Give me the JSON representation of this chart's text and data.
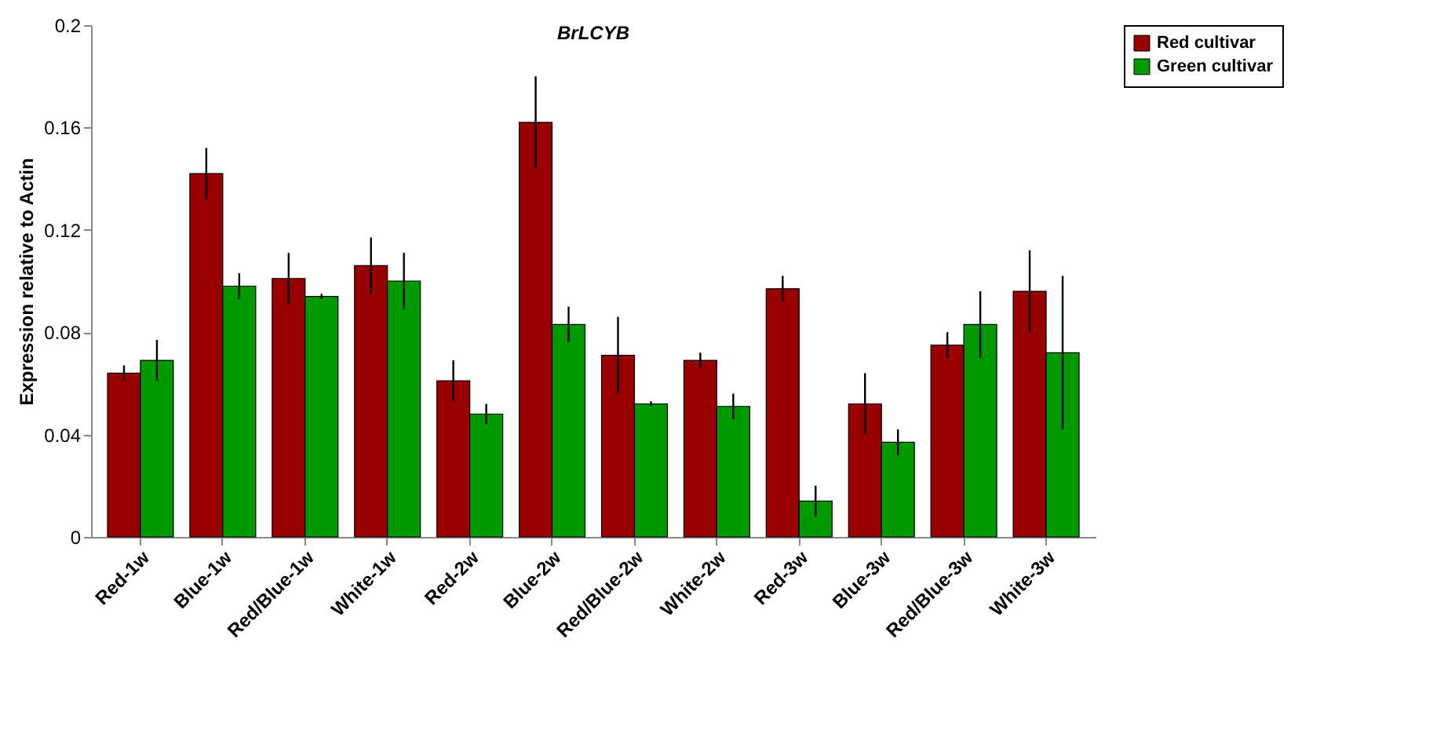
{
  "chart_data": {
    "type": "bar",
    "title": "BrLCYB",
    "ylabel": "Expression relative to Actin",
    "categories": [
      "Red-1w",
      "Blue-1w",
      "Red/Blue-1w",
      "White-1w",
      "Red-2w",
      "Blue-2w",
      "Red/Blue-2w",
      "White-2w",
      "Red-3w",
      "Blue-3w",
      "Red/Blue-3w",
      "White-3w"
    ],
    "series": [
      {
        "name": "Red cultivar",
        "color": "#990000",
        "values": [
          0.064,
          0.142,
          0.101,
          0.106,
          0.061,
          0.162,
          0.071,
          0.069,
          0.097,
          0.052,
          0.075,
          0.096
        ],
        "errors": [
          0.003,
          0.01,
          0.01,
          0.011,
          0.008,
          0.018,
          0.015,
          0.003,
          0.005,
          0.012,
          0.005,
          0.016
        ]
      },
      {
        "name": "Green cultivar",
        "color": "#009900",
        "values": [
          0.069,
          0.098,
          0.094,
          0.1,
          0.048,
          0.083,
          0.052,
          0.051,
          0.014,
          0.037,
          0.083,
          0.072
        ],
        "errors": [
          0.008,
          0.005,
          0.001,
          0.011,
          0.004,
          0.007,
          0.001,
          0.005,
          0.006,
          0.005,
          0.013,
          0.03
        ]
      }
    ],
    "ylim": [
      0,
      0.2
    ],
    "yticks": [
      0,
      0.04,
      0.08,
      0.12,
      0.16,
      0.2
    ],
    "grid": false,
    "legend": "right"
  }
}
